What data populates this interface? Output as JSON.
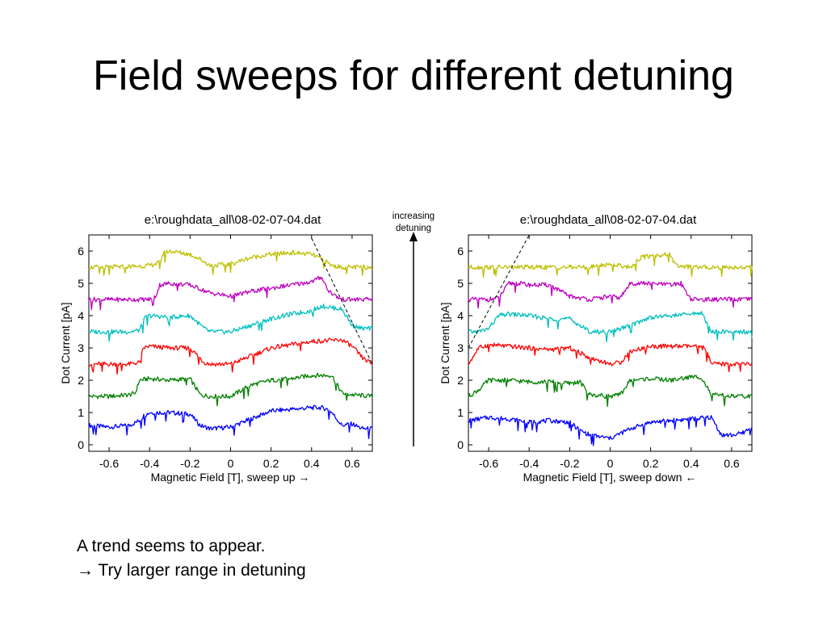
{
  "slide": {
    "title": "Field sweeps for different detuning",
    "annotation": {
      "line1": "increasing",
      "line2": "detuning"
    },
    "notes": [
      {
        "symbol": "→",
        "text": "A trend seems to appear."
      },
      {
        "symbol": "→",
        "text": "Try larger range in detuning"
      }
    ]
  },
  "colors": {
    "series": [
      "#0000ff",
      "#008000",
      "#ff0000",
      "#00bfbf",
      "#bf00bf",
      "#bfbf00"
    ]
  },
  "chart_data": [
    {
      "type": "line",
      "title": "e:\\roughdata_all\\08-02-07-04.dat",
      "xlabel": "Magnetic Field [T], sweep up →",
      "ylabel": "Dot Current [pA]",
      "xlim": [
        -0.7,
        0.7
      ],
      "ylim": [
        -0.2,
        6.5
      ],
      "xticks": [
        -0.6,
        -0.4,
        -0.2,
        0,
        0.2,
        0.4,
        0.6
      ],
      "xtick_labels": [
        "-0.6",
        "-0.4",
        "-0.2",
        "0",
        "0.2",
        "0.4",
        "0.6"
      ],
      "yticks": [
        0,
        1,
        2,
        3,
        4,
        5,
        6
      ],
      "ytick_labels": [
        "0",
        "1",
        "2",
        "3",
        "4",
        "5",
        "6"
      ],
      "grid": false,
      "series": [
        {
          "x": [
            -0.7,
            -0.6,
            -0.5,
            -0.45,
            -0.43,
            -0.4,
            -0.3,
            -0.2,
            -0.15,
            -0.1,
            0.0,
            0.1,
            0.2,
            0.3,
            0.4,
            0.45,
            0.48,
            0.5,
            0.55,
            0.6,
            0.65,
            0.7
          ],
          "y": [
            0.6,
            0.55,
            0.6,
            0.75,
            0.9,
            1.0,
            1.0,
            0.95,
            0.6,
            0.5,
            0.55,
            0.8,
            1.05,
            1.1,
            1.15,
            1.15,
            1.1,
            1.0,
            0.6,
            0.65,
            0.5,
            0.5
          ]
        },
        {
          "x": [
            -0.7,
            -0.6,
            -0.5,
            -0.47,
            -0.45,
            -0.4,
            -0.3,
            -0.2,
            -0.15,
            -0.1,
            0.0,
            0.1,
            0.2,
            0.3,
            0.4,
            0.5,
            0.55,
            0.6,
            0.7
          ],
          "y": [
            1.5,
            1.5,
            1.55,
            1.6,
            2.0,
            2.05,
            2.0,
            2.05,
            1.55,
            1.5,
            1.5,
            1.85,
            2.0,
            2.05,
            2.15,
            2.15,
            1.6,
            1.55,
            1.5
          ]
        },
        {
          "x": [
            -0.7,
            -0.6,
            -0.5,
            -0.45,
            -0.43,
            -0.4,
            -0.3,
            -0.2,
            -0.13,
            -0.1,
            0.0,
            0.1,
            0.2,
            0.3,
            0.4,
            0.55,
            0.6,
            0.65,
            0.7
          ],
          "y": [
            2.5,
            2.5,
            2.5,
            2.55,
            3.0,
            3.05,
            3.0,
            3.0,
            2.55,
            2.5,
            2.5,
            2.75,
            3.0,
            3.1,
            3.2,
            3.25,
            3.05,
            2.7,
            2.5
          ]
        },
        {
          "x": [
            -0.7,
            -0.6,
            -0.5,
            -0.45,
            -0.42,
            -0.4,
            -0.3,
            -0.2,
            -0.13,
            -0.1,
            0.0,
            0.1,
            0.2,
            0.3,
            0.4,
            0.45,
            0.5,
            0.55,
            0.6,
            0.65,
            0.7
          ],
          "y": [
            3.5,
            3.5,
            3.5,
            3.55,
            3.95,
            4.0,
            3.95,
            4.0,
            3.6,
            3.5,
            3.5,
            3.7,
            3.9,
            4.05,
            4.15,
            4.3,
            4.25,
            4.2,
            3.7,
            3.6,
            3.6
          ]
        },
        {
          "x": [
            -0.7,
            -0.6,
            -0.5,
            -0.4,
            -0.37,
            -0.35,
            -0.3,
            -0.2,
            -0.1,
            0.0,
            0.1,
            0.2,
            0.3,
            0.4,
            0.45,
            0.48,
            0.52,
            0.55,
            0.6,
            0.7
          ],
          "y": [
            4.5,
            4.5,
            4.5,
            4.5,
            4.6,
            4.95,
            5.0,
            4.95,
            4.7,
            4.6,
            4.75,
            4.85,
            4.95,
            5.05,
            5.2,
            4.8,
            4.6,
            4.5,
            4.5,
            4.5
          ]
        },
        {
          "x": [
            -0.7,
            -0.6,
            -0.5,
            -0.4,
            -0.35,
            -0.33,
            -0.3,
            -0.2,
            -0.15,
            -0.1,
            0.0,
            0.1,
            0.2,
            0.3,
            0.4,
            0.45,
            0.5,
            0.55,
            0.6,
            0.7
          ],
          "y": [
            5.5,
            5.5,
            5.52,
            5.55,
            5.65,
            5.95,
            6.0,
            5.9,
            5.75,
            5.55,
            5.6,
            5.8,
            5.9,
            5.95,
            5.9,
            5.75,
            5.55,
            5.5,
            5.5,
            5.5
          ]
        }
      ],
      "guide_line": {
        "style": "dashed",
        "x": [
          0.4,
          0.7
        ],
        "y": [
          6.4,
          2.5
        ]
      }
    },
    {
      "type": "line",
      "title": "e:\\roughdata_all\\08-02-07-04.dat",
      "xlabel": "Magnetic Field [T], sweep down ←",
      "ylabel": "Dot Current [pA]",
      "xlim": [
        -0.7,
        0.7
      ],
      "ylim": [
        -0.2,
        6.5
      ],
      "xticks": [
        -0.6,
        -0.4,
        -0.2,
        0,
        0.2,
        0.4,
        0.6
      ],
      "xtick_labels": [
        "-0.6",
        "-0.4",
        "-0.2",
        "0",
        "0.2",
        "0.4",
        "0.6"
      ],
      "yticks": [
        0,
        1,
        2,
        3,
        4,
        5,
        6
      ],
      "ytick_labels": [
        "0",
        "1",
        "2",
        "3",
        "4",
        "5",
        "6"
      ],
      "grid": false,
      "series": [
        {
          "x": [
            -0.7,
            -0.6,
            -0.5,
            -0.4,
            -0.3,
            -0.2,
            -0.15,
            -0.1,
            0.0,
            0.1,
            0.2,
            0.3,
            0.4,
            0.5,
            0.55,
            0.6,
            0.65,
            0.7
          ],
          "y": [
            0.75,
            0.85,
            0.8,
            0.7,
            0.75,
            0.7,
            0.45,
            0.3,
            0.2,
            0.5,
            0.7,
            0.75,
            0.8,
            0.85,
            0.3,
            0.3,
            0.35,
            0.55
          ]
        },
        {
          "x": [
            -0.7,
            -0.65,
            -0.6,
            -0.5,
            -0.4,
            -0.3,
            -0.2,
            -0.15,
            -0.1,
            0.0,
            0.05,
            0.1,
            0.2,
            0.3,
            0.4,
            0.45,
            0.5,
            0.6,
            0.7
          ],
          "y": [
            1.5,
            1.7,
            2.0,
            2.0,
            1.95,
            1.95,
            1.9,
            1.95,
            1.55,
            1.5,
            1.55,
            2.0,
            2.05,
            2.0,
            2.1,
            2.1,
            1.55,
            1.5,
            1.5
          ]
        },
        {
          "x": [
            -0.7,
            -0.68,
            -0.65,
            -0.6,
            -0.5,
            -0.4,
            -0.3,
            -0.2,
            -0.15,
            -0.1,
            0.0,
            0.05,
            0.1,
            0.2,
            0.3,
            0.4,
            0.47,
            0.5,
            0.6,
            0.7
          ],
          "y": [
            2.5,
            2.7,
            3.0,
            3.1,
            3.05,
            3.0,
            2.95,
            3.0,
            2.85,
            2.7,
            2.5,
            2.55,
            2.9,
            3.05,
            3.05,
            3.05,
            3.0,
            2.5,
            2.5,
            2.5
          ]
        },
        {
          "x": [
            -0.7,
            -0.65,
            -0.6,
            -0.55,
            -0.5,
            -0.4,
            -0.3,
            -0.2,
            -0.15,
            -0.1,
            0.0,
            0.1,
            0.2,
            0.3,
            0.4,
            0.45,
            0.5,
            0.6,
            0.7
          ],
          "y": [
            3.5,
            3.5,
            3.6,
            4.0,
            4.05,
            4.0,
            3.9,
            3.9,
            3.7,
            3.5,
            3.5,
            3.7,
            3.95,
            4.0,
            4.05,
            4.1,
            3.5,
            3.5,
            3.5
          ]
        },
        {
          "x": [
            -0.7,
            -0.6,
            -0.55,
            -0.5,
            -0.45,
            -0.4,
            -0.3,
            -0.2,
            -0.1,
            0.0,
            0.05,
            0.1,
            0.2,
            0.3,
            0.35,
            0.4,
            0.5,
            0.6,
            0.7
          ],
          "y": [
            4.5,
            4.5,
            4.55,
            5.0,
            5.0,
            4.95,
            4.95,
            4.6,
            4.5,
            4.6,
            4.55,
            5.0,
            5.0,
            4.95,
            5.0,
            4.5,
            4.5,
            4.5,
            4.5
          ]
        },
        {
          "x": [
            -0.7,
            -0.6,
            -0.5,
            -0.4,
            -0.3,
            -0.2,
            -0.1,
            0.0,
            0.05,
            0.1,
            0.15,
            0.2,
            0.3,
            0.32,
            0.4,
            0.5,
            0.6,
            0.7
          ],
          "y": [
            5.5,
            5.5,
            5.5,
            5.5,
            5.5,
            5.5,
            5.5,
            5.6,
            5.55,
            5.5,
            5.8,
            5.85,
            5.9,
            5.55,
            5.5,
            5.5,
            5.5,
            5.5
          ]
        }
      ],
      "guide_line": {
        "style": "dashed",
        "x": [
          -0.7,
          -0.4
        ],
        "y": [
          3.0,
          6.5
        ]
      }
    }
  ]
}
